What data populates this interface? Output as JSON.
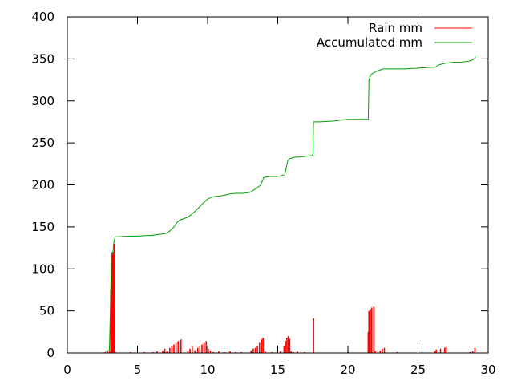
{
  "chart_data": {
    "type": "line",
    "title": "",
    "xlabel": "",
    "ylabel": "",
    "xlim": [
      0,
      30
    ],
    "ylim": [
      0,
      400
    ],
    "x_ticks": [
      0,
      5,
      10,
      15,
      20,
      25,
      30
    ],
    "y_ticks": [
      0,
      50,
      100,
      150,
      200,
      250,
      300,
      350,
      400
    ],
    "x_tick_labels": [
      "0",
      "5",
      "10",
      "15",
      "20",
      "25",
      "30"
    ],
    "y_tick_labels": [
      "0",
      "50",
      "100",
      "150",
      "200",
      "250",
      "300",
      "350",
      "400"
    ],
    "grid": false,
    "legend_position": "top-right",
    "legend": [
      {
        "label": "Rain mm",
        "color": "#ff0000"
      },
      {
        "label": "Accumulated mm",
        "color": "#00a000"
      }
    ],
    "series": [
      {
        "name": "Rain mm",
        "style": "impulses",
        "color": "#ff0000",
        "x": [
          2.7,
          2.85,
          3.0,
          3.1,
          3.15,
          3.2,
          3.25,
          3.3,
          3.35,
          3.4,
          4.5,
          5.5,
          6.1,
          6.4,
          6.8,
          6.95,
          7.1,
          7.3,
          7.45,
          7.6,
          7.75,
          7.9,
          8.1,
          8.6,
          8.75,
          8.9,
          9.1,
          9.3,
          9.45,
          9.6,
          9.75,
          9.9,
          10.05,
          10.2,
          10.4,
          10.8,
          11.2,
          11.6,
          12.0,
          12.4,
          13.1,
          13.25,
          13.4,
          13.55,
          13.7,
          13.85,
          13.95,
          14.1,
          14.6,
          15.2,
          15.45,
          15.55,
          15.65,
          15.75,
          15.85,
          15.95,
          16.1,
          16.4,
          16.9,
          17.55,
          20.0,
          21.45,
          21.5,
          21.6,
          21.7,
          21.85,
          21.95,
          22.3,
          22.45,
          22.6,
          23.5,
          26.2,
          26.3,
          26.6,
          26.9,
          27.0,
          28.7,
          28.9,
          29.05
        ],
        "values": [
          1,
          2,
          2,
          75,
          115,
          120,
          118,
          120,
          130,
          2,
          1,
          1,
          1,
          2,
          3,
          5,
          2,
          6,
          8,
          10,
          12,
          14,
          16,
          2,
          5,
          8,
          3,
          6,
          8,
          10,
          12,
          14,
          5,
          3,
          1,
          2,
          1,
          2,
          1,
          1,
          3,
          5,
          6,
          8,
          12,
          16,
          18,
          2,
          1,
          2,
          8,
          14,
          18,
          20,
          17,
          2,
          1,
          2,
          1,
          41,
          1,
          25,
          50,
          52,
          54,
          55,
          2,
          3,
          5,
          6,
          1,
          2,
          4,
          5,
          6,
          7,
          1,
          2,
          6
        ]
      },
      {
        "name": "Accumulated mm",
        "style": "line",
        "color": "#00a000",
        "x": [
          2.7,
          3.0,
          3.1,
          3.15,
          3.2,
          3.25,
          3.3,
          3.4,
          4.5,
          5.0,
          6.0,
          6.5,
          7.0,
          7.3,
          7.6,
          7.8,
          8.0,
          8.5,
          8.8,
          9.2,
          9.6,
          10.0,
          10.2,
          10.4,
          11.0,
          11.5,
          12.0,
          12.5,
          13.0,
          13.5,
          13.8,
          14.0,
          14.5,
          15.0,
          15.5,
          15.6,
          15.7,
          15.8,
          16.0,
          16.2,
          16.5,
          17.0,
          17.5,
          17.55,
          17.6,
          18.0,
          19.0,
          19.5,
          20.0,
          21.0,
          21.45,
          21.5,
          21.6,
          21.7,
          22.0,
          22.5,
          23.0,
          24.0,
          25.0,
          26.0,
          26.2,
          26.5,
          27.0,
          27.5,
          28.0,
          28.5,
          28.8,
          29.0,
          29.1
        ],
        "values": [
          2,
          3,
          78,
          115,
          118,
          120,
          130,
          138,
          139,
          139,
          140,
          141,
          142,
          145,
          150,
          155,
          158,
          161,
          164,
          170,
          177,
          183,
          185,
          186,
          187,
          189,
          190,
          190,
          191,
          196,
          200,
          209,
          210,
          210,
          212,
          220,
          228,
          231,
          232,
          233,
          233,
          234,
          235,
          275,
          275,
          275,
          276,
          277,
          278,
          278,
          278,
          325,
          330,
          332,
          335,
          338,
          338,
          338,
          339,
          340,
          340,
          343,
          345,
          346,
          346,
          347,
          348,
          350,
          353
        ]
      }
    ]
  }
}
